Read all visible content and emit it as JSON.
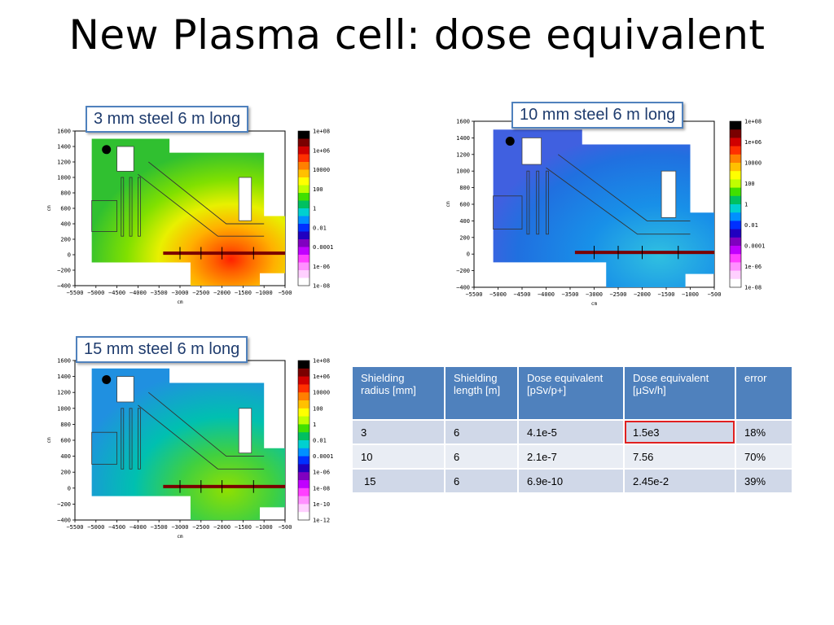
{
  "slide": {
    "title": "New Plasma cell: dose equivalent"
  },
  "plots": [
    {
      "caption": "3 mm steel 6 m long",
      "y_ticks": [
        "1600",
        "1400",
        "1200",
        "1000",
        "800",
        "600",
        "400",
        "200",
        "0",
        "−200",
        "−400"
      ],
      "x_ticks": [
        "−5500",
        "−5000",
        "−4500",
        "−4000",
        "−3500",
        "−3000",
        "−2500",
        "−2000",
        "−1500",
        "−1000",
        "−500"
      ],
      "axis_unit": "cm",
      "colorbar": [
        "1e+08",
        "1e+06",
        "10000",
        "100",
        "1",
        "0.01",
        "0.0001",
        "1e-06",
        "1e-08"
      ],
      "style": "high"
    },
    {
      "caption": "10 mm steel 6 m long",
      "y_ticks": [
        "1600",
        "1400",
        "1200",
        "1000",
        "800",
        "600",
        "400",
        "200",
        "0",
        "−200",
        "−400"
      ],
      "x_ticks": [
        "−5500",
        "−5000",
        "−4500",
        "−4000",
        "−3500",
        "−3000",
        "−2500",
        "−2000",
        "−1500",
        "−1000",
        "−500"
      ],
      "axis_unit": "cm",
      "colorbar": [
        "1e+08",
        "1e+06",
        "10000",
        "100",
        "1",
        "0.01",
        "0.0001",
        "1e-06",
        "1e-08"
      ],
      "style": "low"
    },
    {
      "caption": "15 mm steel 6 m long",
      "y_ticks": [
        "1600",
        "1400",
        "1200",
        "1000",
        "800",
        "600",
        "400",
        "200",
        "0",
        "−200",
        "−400"
      ],
      "x_ticks": [
        "−5500",
        "−5000",
        "−4500",
        "−4000",
        "−3500",
        "−3000",
        "−2500",
        "−2000",
        "−1500",
        "−1000",
        "−500"
      ],
      "axis_unit": "cm",
      "colorbar": [
        "1e+08",
        "1e+06",
        "10000",
        "100",
        "1",
        "0.01",
        "0.0001",
        "1e-06",
        "1e-08",
        "1e-10",
        "1e-12"
      ],
      "style": "mid"
    }
  ],
  "table": {
    "headers": [
      "Shielding radius [mm]",
      "Shielding length [m]",
      "Dose equivalent [pSv/p+]",
      "Dose equivalent [μSv/h]",
      "error"
    ],
    "rows": [
      [
        "3",
        "6",
        "4.1e-5",
        "1.5e3",
        "18%"
      ],
      [
        "10",
        "6",
        "2.1e-7",
        "7.56",
        "70%"
      ],
      [
        "15",
        "6",
        "6.9e-10",
        "2.45e-2",
        "39%"
      ]
    ],
    "highlight_color": "#e02020",
    "header_color": "#4f81bd"
  }
}
